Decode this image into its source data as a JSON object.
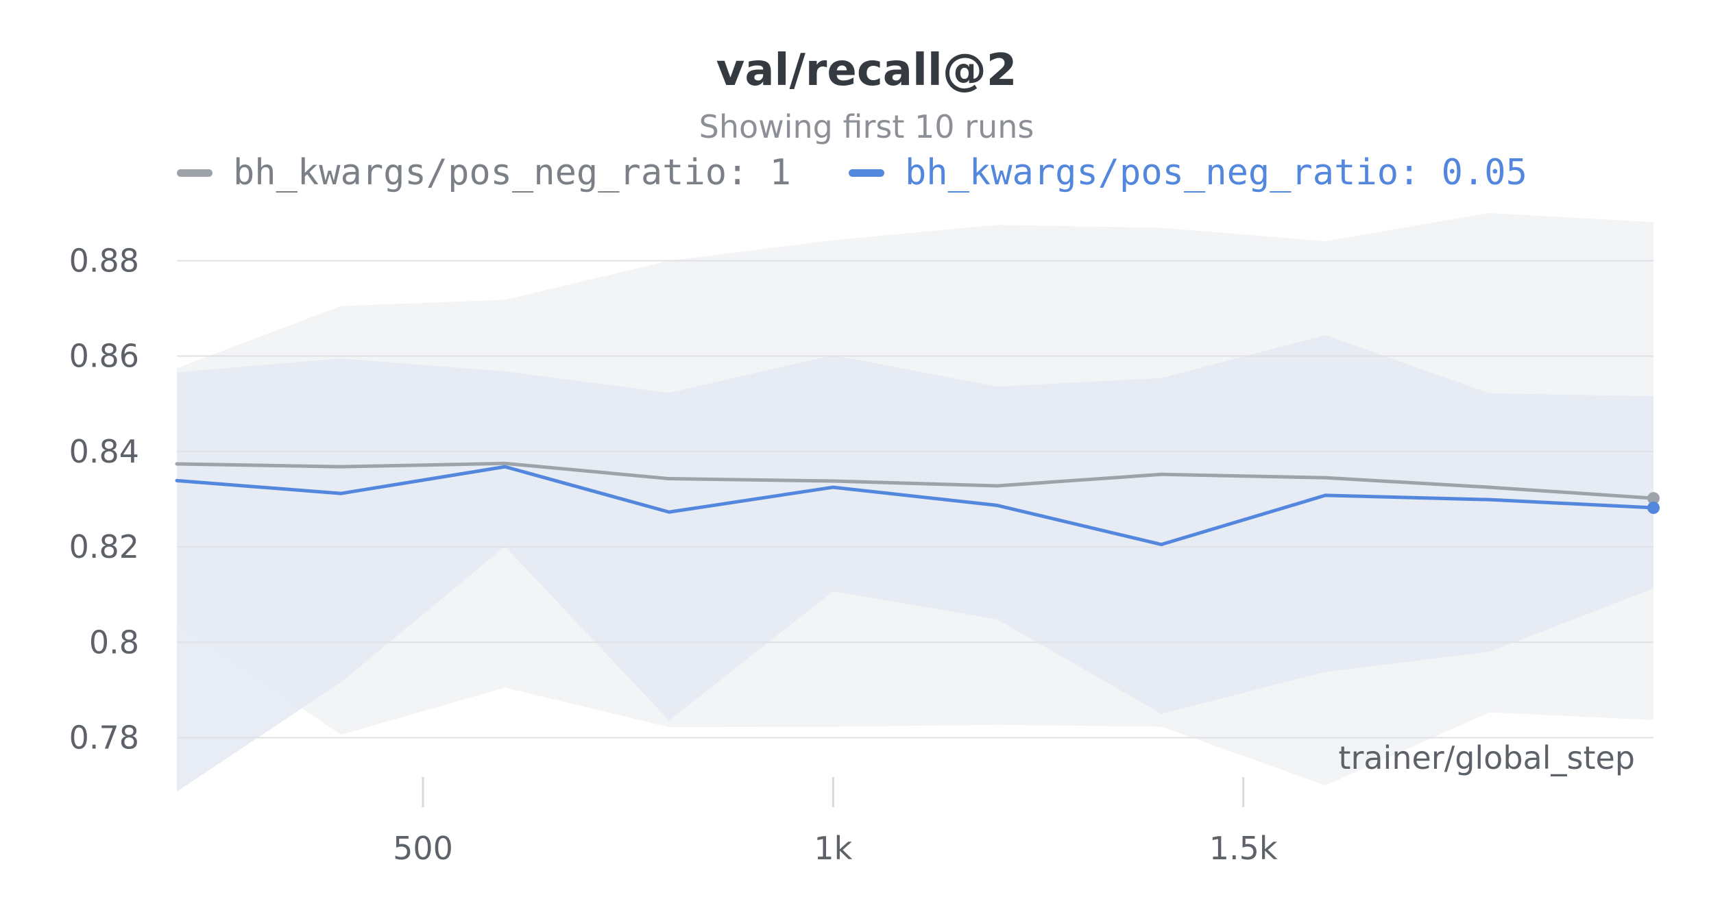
{
  "chart_data": {
    "type": "line",
    "title": "val/recall@2",
    "subtitle": "Showing first 10 runs",
    "xlabel": "trainer/global_step",
    "ylabel": "",
    "xlim": [
      200,
      2000
    ],
    "ylim": [
      0.768,
      0.893
    ],
    "x_ticks": [
      {
        "value": 500,
        "label": "500"
      },
      {
        "value": 1000,
        "label": "1k"
      },
      {
        "value": 1500,
        "label": "1.5k"
      }
    ],
    "y_ticks": [
      {
        "value": 0.78,
        "label": "0.78"
      },
      {
        "value": 0.8,
        "label": "0.8"
      },
      {
        "value": 0.82,
        "label": "0.82"
      },
      {
        "value": 0.84,
        "label": "0.84"
      },
      {
        "value": 0.86,
        "label": "0.86"
      },
      {
        "value": 0.88,
        "label": "0.88"
      }
    ],
    "grid": true,
    "legend_position": "top-left",
    "x": [
      200,
      400,
      600,
      800,
      1000,
      1200,
      1400,
      1600,
      1800,
      2000
    ],
    "series": [
      {
        "name": "bh_kwargs/pos_neg_ratio: 1",
        "color": "#9ea3aa",
        "band_color": "#f3f4f6",
        "values": [
          0.8374,
          0.8368,
          0.8375,
          0.8343,
          0.8338,
          0.8328,
          0.8352,
          0.8345,
          0.8325,
          0.8302
        ],
        "band_max": [
          0.8575,
          0.8705,
          0.8718,
          0.88,
          0.8843,
          0.8875,
          0.8869,
          0.8841,
          0.89,
          0.8881
        ],
        "band_min": [
          0.804,
          0.7806,
          0.7905,
          0.7822,
          0.7823,
          0.7827,
          0.7823,
          0.77,
          0.7853,
          0.7837
        ]
      },
      {
        "name": "bh_kwargs/pos_neg_ratio: 0.05",
        "color": "#5387dd",
        "band_color": "#e3e9f3",
        "values": [
          0.8339,
          0.8312,
          0.8368,
          0.8273,
          0.8325,
          0.8287,
          0.8205,
          0.8308,
          0.8299,
          0.8282
        ],
        "band_max": [
          0.8566,
          0.8595,
          0.8568,
          0.8523,
          0.8602,
          0.8536,
          0.8554,
          0.8644,
          0.8522,
          0.8516
        ],
        "band_min": [
          0.7687,
          0.7916,
          0.8201,
          0.7836,
          0.8107,
          0.8048,
          0.785,
          0.7938,
          0.798,
          0.8113
        ]
      }
    ]
  }
}
